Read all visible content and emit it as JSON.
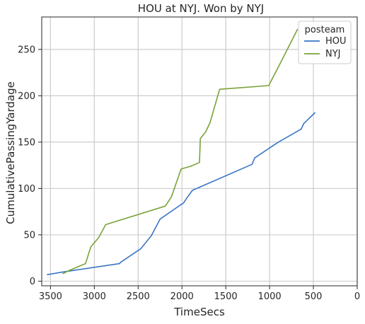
{
  "chart_data": {
    "type": "line",
    "title": "HOU at NYJ. Won by NYJ",
    "xlabel": "TimeSecs",
    "ylabel": "CumulativePassingYardage",
    "xlim": [
      3600,
      0
    ],
    "ylim": [
      -5,
      285
    ],
    "x_ticks": [
      3500,
      3000,
      2500,
      2000,
      1500,
      1000,
      500,
      0
    ],
    "y_ticks": [
      0,
      50,
      100,
      150,
      200,
      250
    ],
    "grid": true,
    "legend": {
      "title": "posteam",
      "placement": "top-right"
    },
    "series": [
      {
        "name": "HOU",
        "color": "#3a75c4",
        "points": [
          [
            3540,
            7
          ],
          [
            3350,
            10
          ],
          [
            2710,
            19
          ],
          [
            2705,
            20
          ],
          [
            2470,
            35
          ],
          [
            2350,
            49
          ],
          [
            2250,
            67
          ],
          [
            2005,
            83
          ],
          [
            1985,
            84
          ],
          [
            1935,
            91
          ],
          [
            1880,
            98
          ],
          [
            1200,
            126
          ],
          [
            1170,
            133
          ],
          [
            900,
            150
          ],
          [
            640,
            164
          ],
          [
            610,
            170
          ],
          [
            480,
            182
          ]
        ]
      },
      {
        "name": "NYJ",
        "color": "#7aa23a",
        "points": [
          [
            3360,
            8
          ],
          [
            3300,
            11
          ],
          [
            3100,
            19
          ],
          [
            3040,
            37
          ],
          [
            2950,
            47
          ],
          [
            2870,
            61
          ],
          [
            2190,
            81
          ],
          [
            2120,
            91
          ],
          [
            2010,
            121
          ],
          [
            1900,
            124
          ],
          [
            1800,
            128
          ],
          [
            1790,
            154
          ],
          [
            1730,
            161
          ],
          [
            1680,
            171
          ],
          [
            1570,
            207
          ],
          [
            1010,
            211
          ],
          [
            900,
            231
          ],
          [
            680,
            272
          ]
        ]
      }
    ]
  }
}
